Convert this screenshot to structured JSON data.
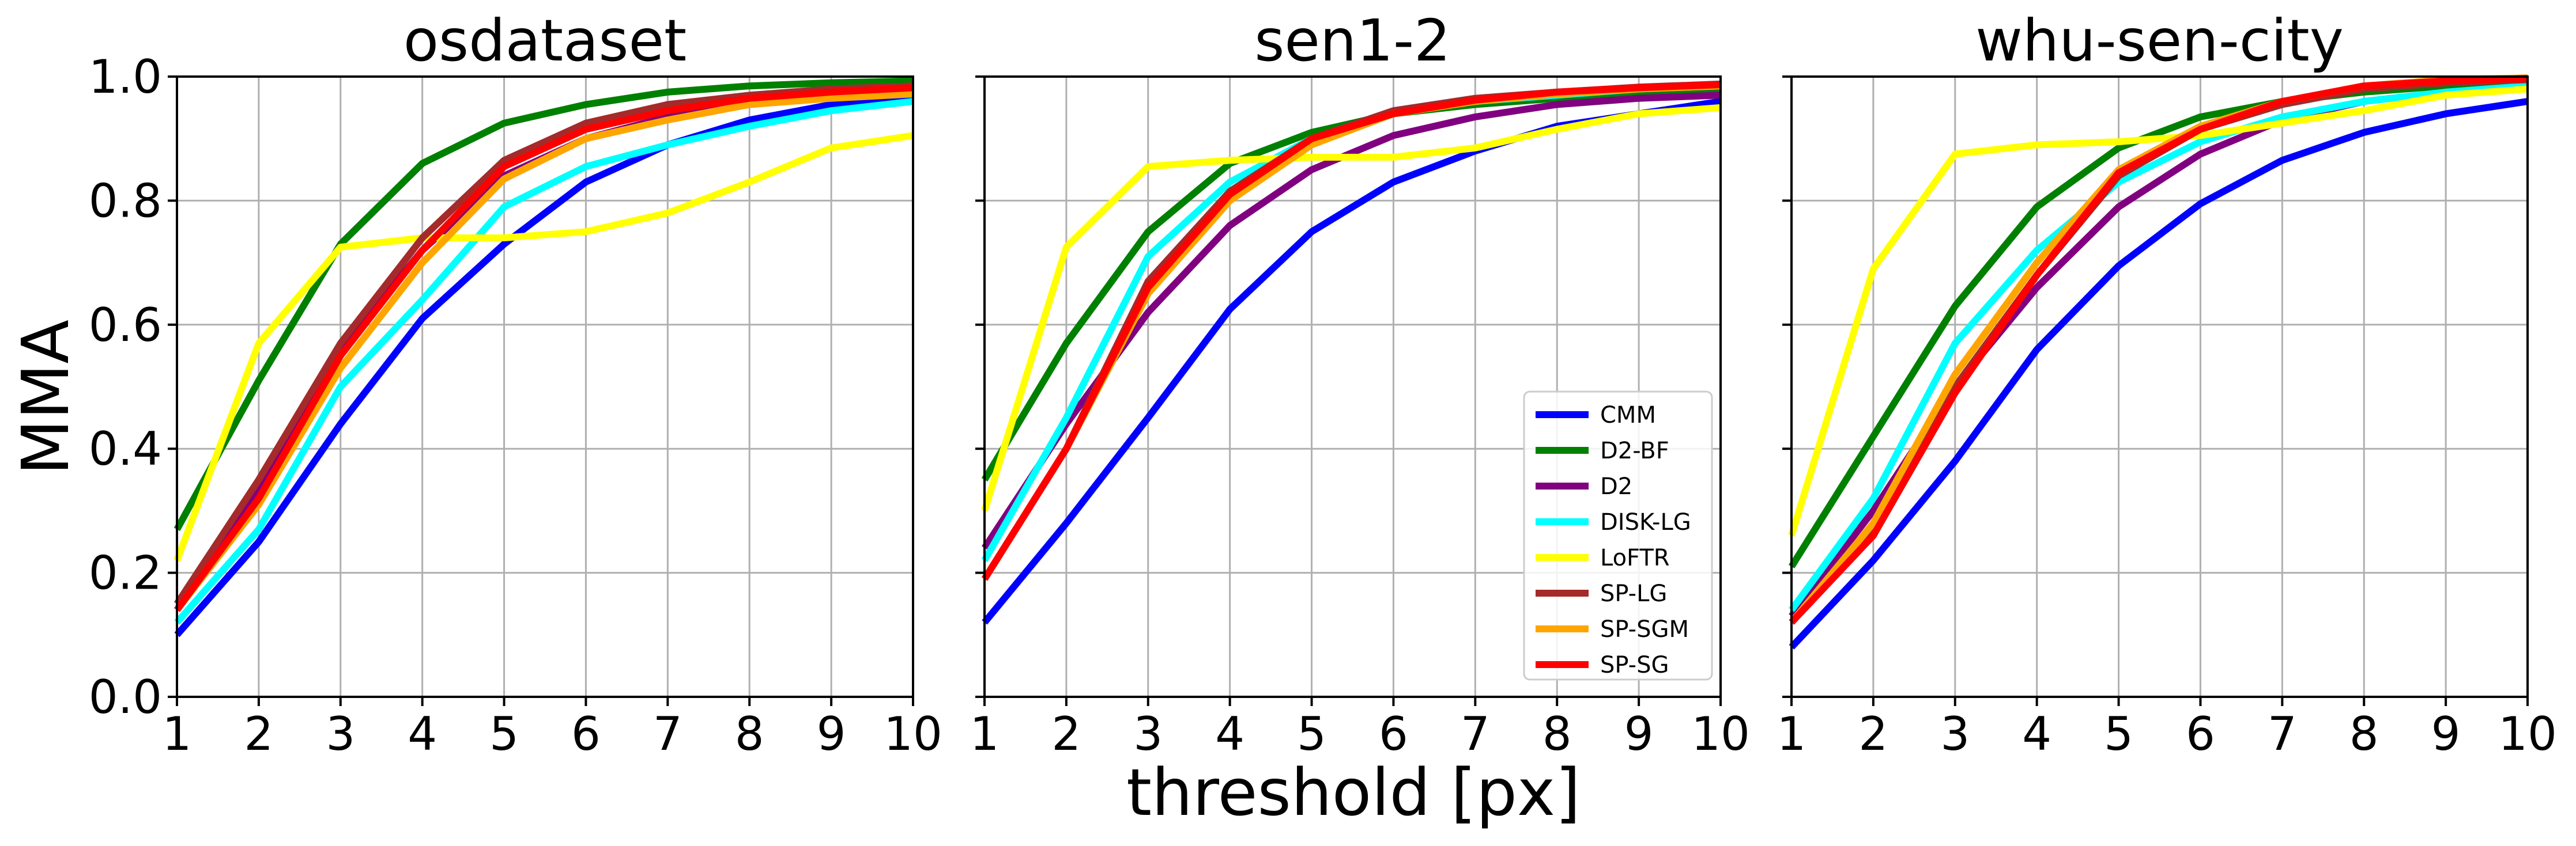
{
  "figure": {
    "ylabel": "MMA",
    "xlabel": "threshold [px]"
  },
  "chart_data": [
    {
      "type": "line",
      "title": "osdataset",
      "xlabel": "",
      "ylabel": "MMA",
      "xlim": [
        1,
        10
      ],
      "ylim": [
        0.0,
        1.0
      ],
      "x": [
        1,
        2,
        3,
        4,
        5,
        6,
        7,
        8,
        9,
        10
      ],
      "xticks": [
        "1",
        "2",
        "3",
        "4",
        "5",
        "6",
        "7",
        "8",
        "9",
        "10"
      ],
      "yticks": [
        "0.0",
        "0.2",
        "0.4",
        "0.6",
        "0.8",
        "1.0"
      ],
      "grid": true,
      "series": [
        {
          "name": "CMM",
          "color": "#0000ff",
          "values": [
            0.1,
            0.25,
            0.44,
            0.61,
            0.73,
            0.83,
            0.89,
            0.93,
            0.955,
            0.965
          ]
        },
        {
          "name": "D2-BF",
          "color": "#008000",
          "values": [
            0.27,
            0.51,
            0.73,
            0.86,
            0.925,
            0.955,
            0.975,
            0.985,
            0.99,
            0.993
          ]
        },
        {
          "name": "D2",
          "color": "#800080",
          "values": [
            0.14,
            0.34,
            0.56,
            0.72,
            0.84,
            0.9,
            0.935,
            0.955,
            0.97,
            0.978
          ]
        },
        {
          "name": "DISK-LG",
          "color": "#00ffff",
          "values": [
            0.12,
            0.27,
            0.5,
            0.64,
            0.79,
            0.855,
            0.89,
            0.92,
            0.945,
            0.96
          ]
        },
        {
          "name": "LoFTR",
          "color": "#ffff00",
          "values": [
            0.22,
            0.57,
            0.725,
            0.74,
            0.74,
            0.75,
            0.78,
            0.83,
            0.885,
            0.905
          ]
        },
        {
          "name": "SP-LG",
          "color": "#a52a2a",
          "values": [
            0.15,
            0.35,
            0.57,
            0.74,
            0.865,
            0.925,
            0.955,
            0.97,
            0.98,
            0.985
          ]
        },
        {
          "name": "SP-SGM",
          "color": "#ffa500",
          "values": [
            0.14,
            0.31,
            0.53,
            0.7,
            0.835,
            0.9,
            0.93,
            0.955,
            0.965,
            0.972
          ]
        },
        {
          "name": "SP-SG",
          "color": "#ff0000",
          "values": [
            0.14,
            0.32,
            0.55,
            0.72,
            0.855,
            0.915,
            0.945,
            0.965,
            0.975,
            0.982
          ]
        }
      ]
    },
    {
      "type": "line",
      "title": "sen1-2",
      "xlabel": "threshold [px]",
      "ylabel": "",
      "xlim": [
        1,
        10
      ],
      "ylim": [
        0.0,
        1.0
      ],
      "x": [
        1,
        2,
        3,
        4,
        5,
        6,
        7,
        8,
        9,
        10
      ],
      "xticks": [
        "1",
        "2",
        "3",
        "4",
        "5",
        "6",
        "7",
        "8",
        "9",
        "10"
      ],
      "yticks": [
        "0.0",
        "0.2",
        "0.4",
        "0.6",
        "0.8",
        "1.0"
      ],
      "grid": true,
      "legend": "lower-right",
      "series": [
        {
          "name": "CMM",
          "color": "#0000ff",
          "values": [
            0.12,
            0.28,
            0.45,
            0.625,
            0.75,
            0.83,
            0.88,
            0.92,
            0.94,
            0.96
          ]
        },
        {
          "name": "D2-BF",
          "color": "#008000",
          "values": [
            0.35,
            0.57,
            0.75,
            0.86,
            0.91,
            0.94,
            0.955,
            0.965,
            0.975,
            0.98
          ]
        },
        {
          "name": "D2",
          "color": "#800080",
          "values": [
            0.24,
            0.44,
            0.62,
            0.76,
            0.85,
            0.905,
            0.935,
            0.955,
            0.965,
            0.97
          ]
        },
        {
          "name": "DISK-LG",
          "color": "#00ffff",
          "values": [
            0.22,
            0.45,
            0.71,
            0.83,
            0.9,
            0.94,
            0.96,
            0.97,
            0.98,
            0.985
          ]
        },
        {
          "name": "LoFTR",
          "color": "#ffff00",
          "values": [
            0.3,
            0.725,
            0.855,
            0.865,
            0.87,
            0.87,
            0.885,
            0.915,
            0.94,
            0.95
          ]
        },
        {
          "name": "SP-LG",
          "color": "#a52a2a",
          "values": [
            0.19,
            0.4,
            0.67,
            0.815,
            0.9,
            0.945,
            0.965,
            0.975,
            0.983,
            0.988
          ]
        },
        {
          "name": "SP-SGM",
          "color": "#ffa500",
          "values": [
            0.19,
            0.4,
            0.65,
            0.8,
            0.89,
            0.94,
            0.96,
            0.972,
            0.98,
            0.985
          ]
        },
        {
          "name": "SP-SG",
          "color": "#ff0000",
          "values": [
            0.19,
            0.4,
            0.66,
            0.81,
            0.9,
            0.94,
            0.962,
            0.975,
            0.982,
            0.987
          ]
        }
      ]
    },
    {
      "type": "line",
      "title": "whu-sen-city",
      "xlabel": "",
      "ylabel": "",
      "xlim": [
        1,
        10
      ],
      "ylim": [
        0.0,
        1.0
      ],
      "x": [
        1,
        2,
        3,
        4,
        5,
        6,
        7,
        8,
        9,
        10
      ],
      "xticks": [
        "1",
        "2",
        "3",
        "4",
        "5",
        "6",
        "7",
        "8",
        "9",
        "10"
      ],
      "yticks": [
        "0.0",
        "0.2",
        "0.4",
        "0.6",
        "0.8",
        "1.0"
      ],
      "grid": true,
      "series": [
        {
          "name": "CMM",
          "color": "#0000ff",
          "values": [
            0.08,
            0.22,
            0.38,
            0.56,
            0.695,
            0.795,
            0.865,
            0.91,
            0.94,
            0.96
          ]
        },
        {
          "name": "D2-BF",
          "color": "#008000",
          "values": [
            0.21,
            0.42,
            0.63,
            0.79,
            0.885,
            0.935,
            0.96,
            0.975,
            0.985,
            0.99
          ]
        },
        {
          "name": "D2",
          "color": "#800080",
          "values": [
            0.13,
            0.3,
            0.5,
            0.66,
            0.79,
            0.875,
            0.93,
            0.96,
            0.975,
            0.985
          ]
        },
        {
          "name": "DISK-LG",
          "color": "#00ffff",
          "values": [
            0.14,
            0.32,
            0.57,
            0.72,
            0.83,
            0.895,
            0.935,
            0.96,
            0.975,
            0.985
          ]
        },
        {
          "name": "LoFTR",
          "color": "#ffff00",
          "values": [
            0.26,
            0.69,
            0.875,
            0.89,
            0.895,
            0.905,
            0.925,
            0.945,
            0.97,
            0.98
          ]
        },
        {
          "name": "SP-LG",
          "color": "#a52a2a",
          "values": [
            0.12,
            0.27,
            0.5,
            0.68,
            0.84,
            0.915,
            0.955,
            0.98,
            0.99,
            0.995
          ]
        },
        {
          "name": "SP-SGM",
          "color": "#ffa500",
          "values": [
            0.12,
            0.28,
            0.52,
            0.7,
            0.85,
            0.92,
            0.96,
            0.985,
            0.995,
            0.998
          ]
        },
        {
          "name": "SP-SG",
          "color": "#ff0000",
          "values": [
            0.12,
            0.26,
            0.49,
            0.68,
            0.845,
            0.915,
            0.96,
            0.985,
            0.993,
            0.997
          ]
        }
      ]
    }
  ]
}
